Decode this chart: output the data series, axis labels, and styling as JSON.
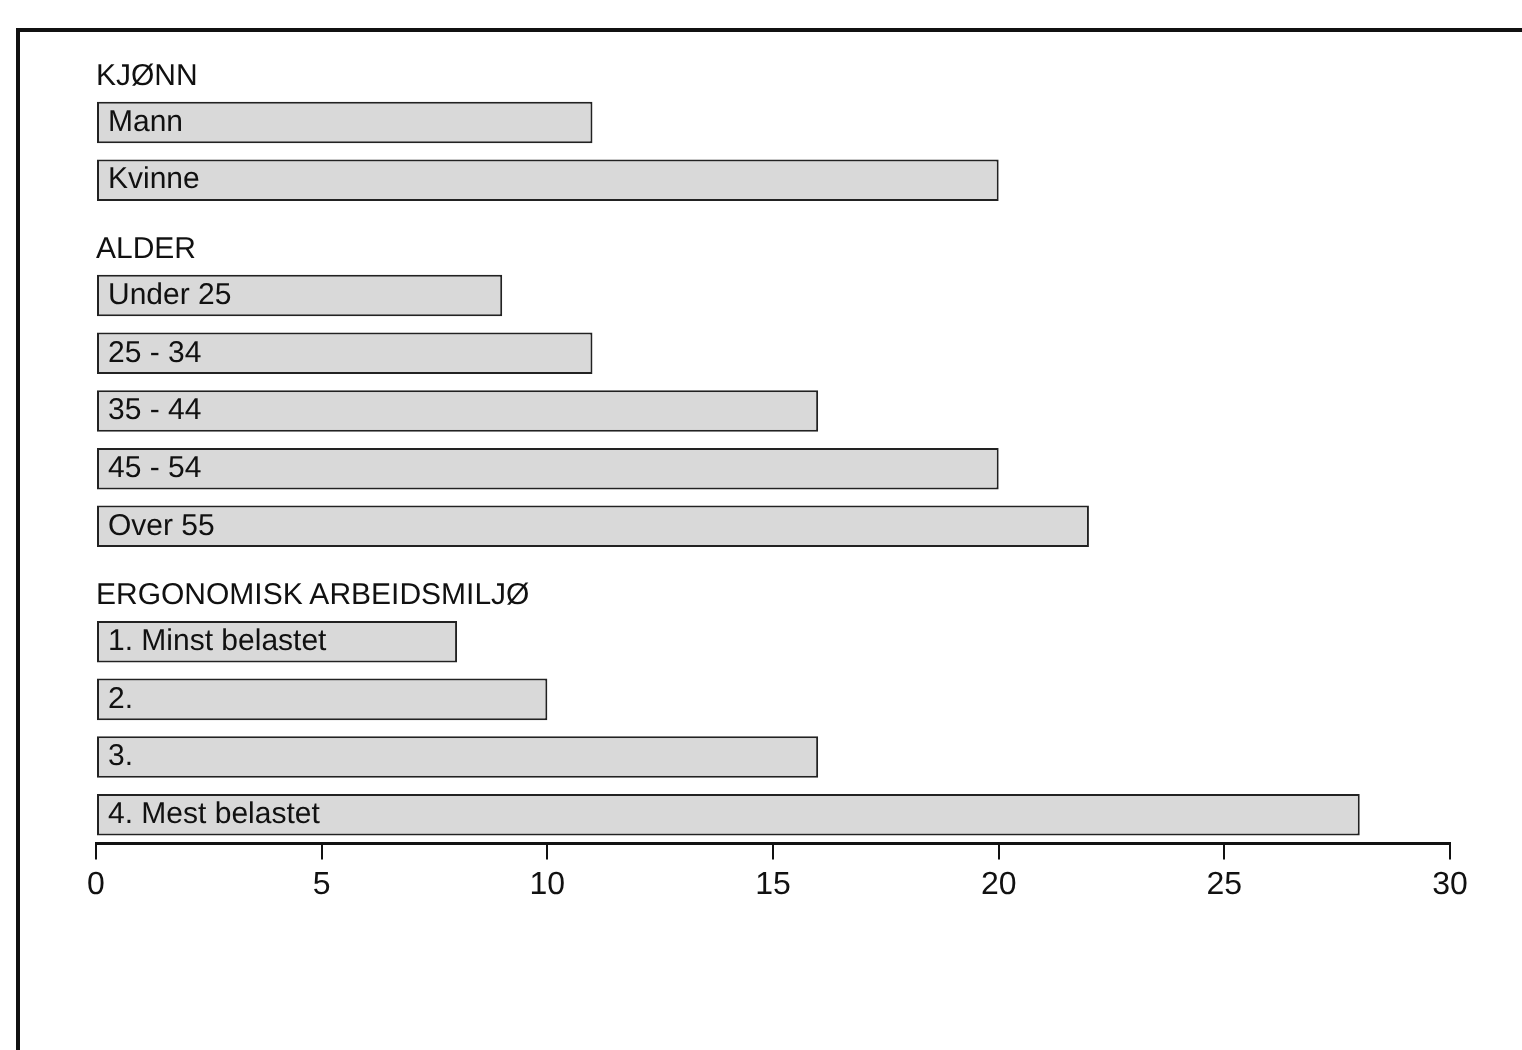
{
  "chart_data": {
    "type": "bar",
    "orientation": "horizontal",
    "categories": [
      "KJØNN",
      "Mann",
      "Kvinne",
      "ALDER",
      "Under 25",
      "25 - 34",
      "35 - 44",
      "45 - 54",
      "Over 55",
      "ERGONOMISK ARBEIDSMILJØ",
      "1. Minst belastet",
      "2.",
      "3.",
      "4. Mest belastet"
    ],
    "values": [
      null,
      11,
      20,
      null,
      9,
      11,
      16,
      20,
      22,
      null,
      8,
      10,
      16,
      28
    ],
    "color": "#d9d9d9",
    "xlim": [
      0,
      30
    ],
    "xticks": [
      0,
      5,
      10,
      15,
      20,
      25,
      30
    ],
    "grid": false,
    "legend": false
  }
}
